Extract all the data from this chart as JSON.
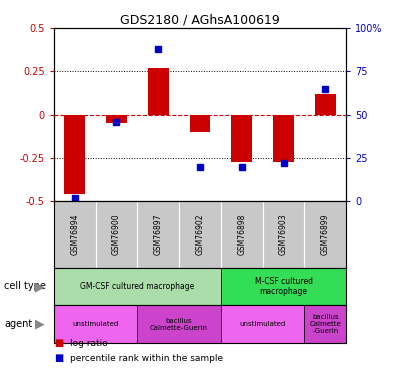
{
  "title": "GDS2180 / AGhsA100619",
  "samples": [
    "GSM76894",
    "GSM76900",
    "GSM76897",
    "GSM76902",
    "GSM76898",
    "GSM76903",
    "GSM76899"
  ],
  "log_ratio": [
    -0.46,
    -0.05,
    0.27,
    -0.1,
    -0.27,
    -0.27,
    0.12
  ],
  "percentile_rank": [
    2,
    46,
    88,
    20,
    20,
    22,
    65
  ],
  "ylim_left": [
    -0.5,
    0.5
  ],
  "ylim_right": [
    0,
    100
  ],
  "cell_type_groups": [
    {
      "label": "GM-CSF cultured macrophage",
      "span": [
        0,
        4
      ],
      "color": "#aaddaa"
    },
    {
      "label": "M-CSF cultured\nmacrophage",
      "span": [
        4,
        7
      ],
      "color": "#33dd55"
    }
  ],
  "agent_groups": [
    {
      "label": "unstimulated",
      "span": [
        0,
        2
      ],
      "color": "#ee66ee"
    },
    {
      "label": "bacillus\nCalmette-Guerin",
      "span": [
        2,
        4
      ],
      "color": "#cc44cc"
    },
    {
      "label": "unstimulated",
      "span": [
        4,
        6
      ],
      "color": "#ee66ee"
    },
    {
      "label": "bacillus\nCalmette\n-Guerin",
      "span": [
        6,
        7
      ],
      "color": "#cc44cc"
    }
  ],
  "bar_color_red": "#CC0000",
  "bar_color_blue": "#0000CC",
  "zero_line_color": "#CC0000",
  "grid_color": "black",
  "tick_label_color_left": "#CC0000",
  "tick_label_color_right": "#0000CC",
  "left_ticks": [
    -0.5,
    -0.25,
    0,
    0.25,
    0.5
  ],
  "right_ticks": [
    0,
    25,
    50,
    75,
    100
  ],
  "right_tick_labels": [
    "0",
    "25",
    "50",
    "75",
    "100%"
  ],
  "sample_bg_color": "#C8C8C8",
  "legend_red_label": "log ratio",
  "legend_blue_label": "percentile rank within the sample",
  "left_margin_labels": [
    {
      "text": "cell type",
      "row": "cell"
    },
    {
      "text": "agent",
      "row": "agent"
    }
  ]
}
